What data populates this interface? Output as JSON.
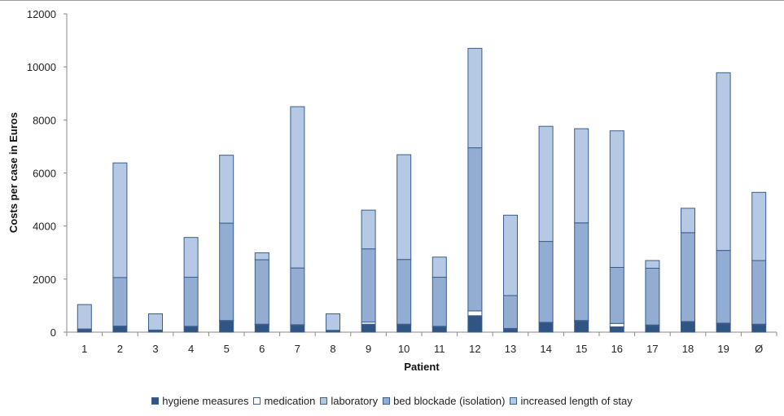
{
  "chart_data": {
    "type": "bar",
    "stacked": true,
    "xlabel": "Patient",
    "ylabel": "Costs per case in Euros",
    "ylim": [
      0,
      12000
    ],
    "yticks": [
      0,
      2000,
      4000,
      6000,
      8000,
      10000,
      12000
    ],
    "categories": [
      "1",
      "2",
      "3",
      "4",
      "5",
      "6",
      "7",
      "8",
      "9",
      "10",
      "11",
      "12",
      "13",
      "14",
      "15",
      "16",
      "17",
      "18",
      "19",
      "Ø"
    ],
    "legend_position": "bottom",
    "series": [
      {
        "name": "hygiene measures",
        "color": "#2f5584",
        "values": [
          100,
          200,
          60,
          200,
          420,
          280,
          250,
          60,
          300,
          280,
          200,
          620,
          120,
          350,
          420,
          200,
          250,
          380,
          320,
          280
        ]
      },
      {
        "name": "medication",
        "color": "#ffffff",
        "values": [
          20,
          30,
          20,
          20,
          20,
          20,
          30,
          10,
          80,
          20,
          20,
          180,
          20,
          20,
          20,
          130,
          20,
          20,
          20,
          20
        ]
      },
      {
        "name": "laboratory",
        "color": "#b4c7e2",
        "values": [
          0,
          0,
          0,
          0,
          0,
          0,
          0,
          0,
          0,
          0,
          0,
          0,
          0,
          0,
          0,
          0,
          0,
          0,
          0,
          0
        ]
      },
      {
        "name": "bed blockade (isolation)",
        "color": "#92acd2",
        "values": [
          0,
          1830,
          0,
          1850,
          3670,
          2430,
          2140,
          0,
          2760,
          2440,
          1850,
          6150,
          1240,
          3050,
          3680,
          2110,
          2140,
          3350,
          2740,
          2400
        ]
      },
      {
        "name": "increased length of stay",
        "color": "#b6c9e4",
        "values": [
          920,
          4320,
          610,
          1500,
          2560,
          260,
          6080,
          620,
          1460,
          3950,
          760,
          3750,
          3030,
          4340,
          3550,
          5150,
          290,
          920,
          6700,
          2570
        ]
      }
    ]
  }
}
